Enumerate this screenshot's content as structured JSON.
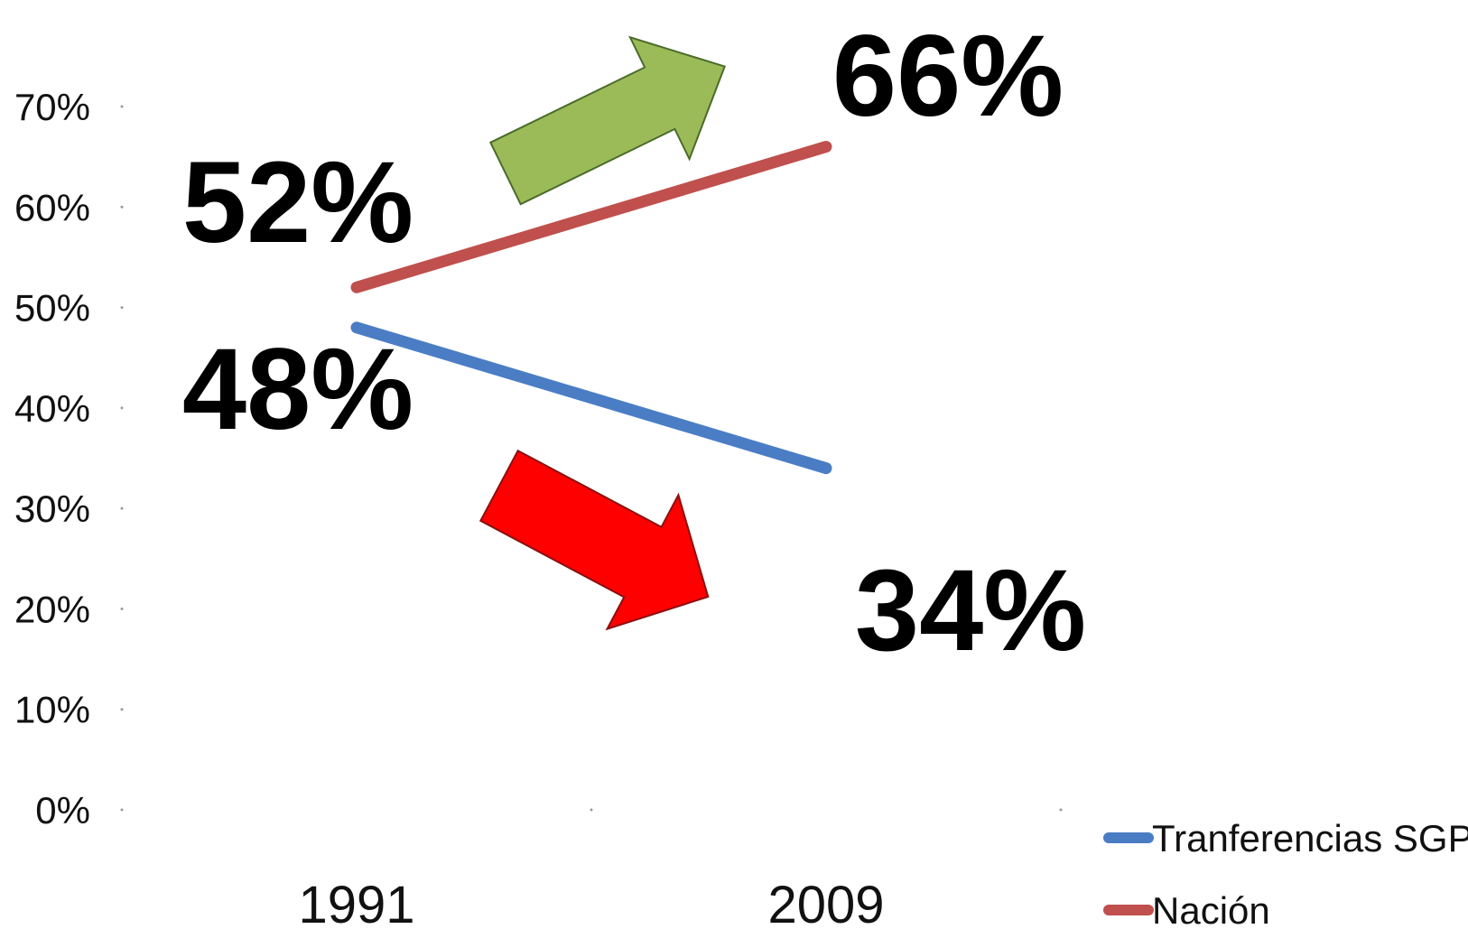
{
  "colors": {
    "series_sgp": "#4a7dc4",
    "series_nacion": "#c0504d",
    "arrow_up": "#9bbb59",
    "arrow_down": "#ff0000"
  },
  "chart_data": {
    "type": "line",
    "categories": [
      "1991",
      "2009"
    ],
    "ylim": [
      0,
      0.7
    ],
    "yticks": [
      "0%",
      "10%",
      "20%",
      "30%",
      "40%",
      "50%",
      "60%",
      "70%"
    ],
    "grid": false,
    "legend_position": "bottom-right",
    "series": [
      {
        "name": "Tranferencias SGP",
        "values": [
          0.48,
          0.34
        ],
        "color": "#4a7dc4",
        "labels": [
          "48%",
          "34%"
        ]
      },
      {
        "name": "Nación",
        "values": [
          0.52,
          0.66
        ],
        "color": "#c0504d",
        "labels": [
          "52%",
          "66%"
        ]
      }
    ],
    "annotations": [
      {
        "icon": "arrow-up-icon",
        "direction": "up",
        "color": "#9bbb59"
      },
      {
        "icon": "arrow-down-icon",
        "direction": "down",
        "color": "#ff0000"
      }
    ]
  }
}
